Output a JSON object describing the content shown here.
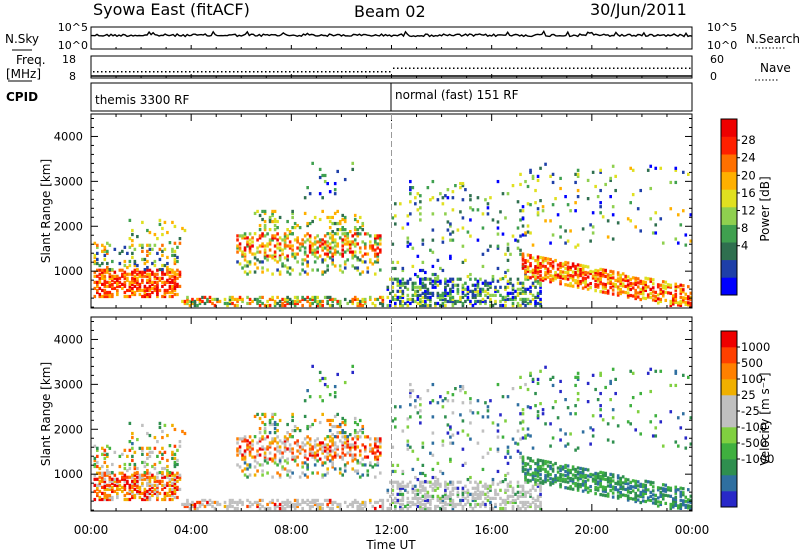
{
  "header": {
    "station": "Syowa East (fitACF)",
    "beam": "Beam 02",
    "date": "30/Jun/2011"
  },
  "strips": {
    "nsky_label": "N.Sky",
    "nsearch_label": "N.Search",
    "noise_left_ticks": [
      "10^5",
      "10^0"
    ],
    "noise_right_ticks": [
      "10^5",
      "10^0"
    ],
    "freq_label": "Freq.",
    "freq_unit": "[MHz]",
    "freq_ticks": [
      "18",
      "8"
    ],
    "nave_label": "Nave",
    "nave_ticks": [
      "60",
      "0"
    ],
    "cpid_label": "CPID",
    "cpid_segments": [
      "themis 3300 RF",
      "normal (fast) 151 RF"
    ]
  },
  "chart_data": [
    {
      "type": "heatmap",
      "name": "power",
      "ylabel": "Slant Range [km]",
      "xlabel": "Time UT",
      "x_tick_labels": [
        "00:00",
        "04:00",
        "08:00",
        "12:00",
        "16:00",
        "20:00",
        "00:00"
      ],
      "x_range_hours": [
        0,
        24
      ],
      "ylim": [
        180,
        4500
      ],
      "y_ticks": [
        1000,
        2000,
        3000,
        4000
      ],
      "colorbar": {
        "label": "Power [dB]",
        "tick_labels": [
          "28",
          "24",
          "20",
          "16",
          "12",
          "8",
          "4"
        ],
        "colors": [
          "#0000ff",
          "#1e3fa8",
          "#2f6f4f",
          "#3fa04f",
          "#8fd04f",
          "#e0e020",
          "#ffb000",
          "#ff7000",
          "#ff2000",
          "#ee0000"
        ]
      }
    },
    {
      "type": "heatmap",
      "name": "velocity",
      "ylabel": "Slant Range [km]",
      "xlabel": "Time UT",
      "x_tick_labels": [
        "00:00",
        "04:00",
        "08:00",
        "12:00",
        "16:00",
        "20:00",
        "00:00"
      ],
      "x_range_hours": [
        0,
        24
      ],
      "ylim": [
        180,
        4500
      ],
      "y_ticks": [
        1000,
        2000,
        3000,
        4000
      ],
      "colorbar": {
        "label": "Velocity [m s⁻¹]",
        "tick_labels": [
          "1000",
          "500",
          "100",
          "25",
          "-25",
          "-100",
          "-500",
          "-1000"
        ],
        "colors": [
          "#2828c8",
          "#2f6fa0",
          "#2f8f4f",
          "#3fb03f",
          "#80d040",
          "#c0c0c0",
          "#c0c0c0",
          "#f0b000",
          "#ff8000",
          "#ff4000",
          "#ee0000"
        ]
      }
    }
  ]
}
